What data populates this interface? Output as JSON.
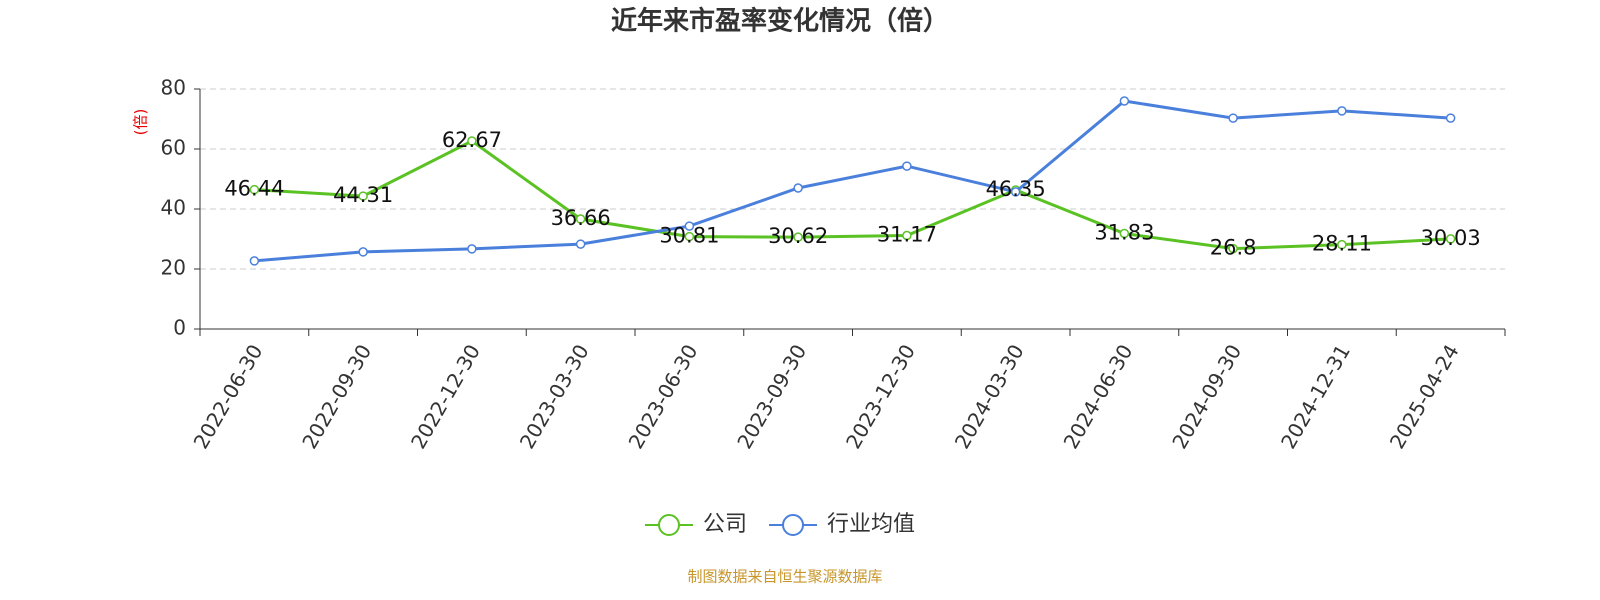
{
  "chart_data": {
    "type": "line",
    "title": "近年来市盈率变化情况（倍）",
    "ylabel": "(倍)",
    "categories": [
      "2022-06-30",
      "2022-09-30",
      "2022-12-30",
      "2023-03-30",
      "2023-06-30",
      "2023-09-30",
      "2023-12-30",
      "2024-03-30",
      "2024-06-30",
      "2024-09-30",
      "2024-12-31",
      "2025-04-24"
    ],
    "series": [
      {
        "name": "公司",
        "color": "#5bc224",
        "values": [
          46.44,
          44.31,
          62.67,
          36.66,
          30.81,
          30.62,
          31.17,
          46.35,
          31.83,
          26.8,
          28.11,
          30.03
        ]
      },
      {
        "name": "行业均值",
        "color": "#4a80dc",
        "values": [
          22.7,
          25.7,
          26.7,
          28.3,
          34.3,
          47,
          54.3,
          45.7,
          76,
          70.3,
          72.7,
          70.3
        ]
      }
    ],
    "ylim": [
      0,
      80
    ],
    "yticks": [
      0,
      20,
      40,
      60,
      80
    ],
    "grid": true,
    "source": "制图数据来自恒生聚源数据库"
  }
}
